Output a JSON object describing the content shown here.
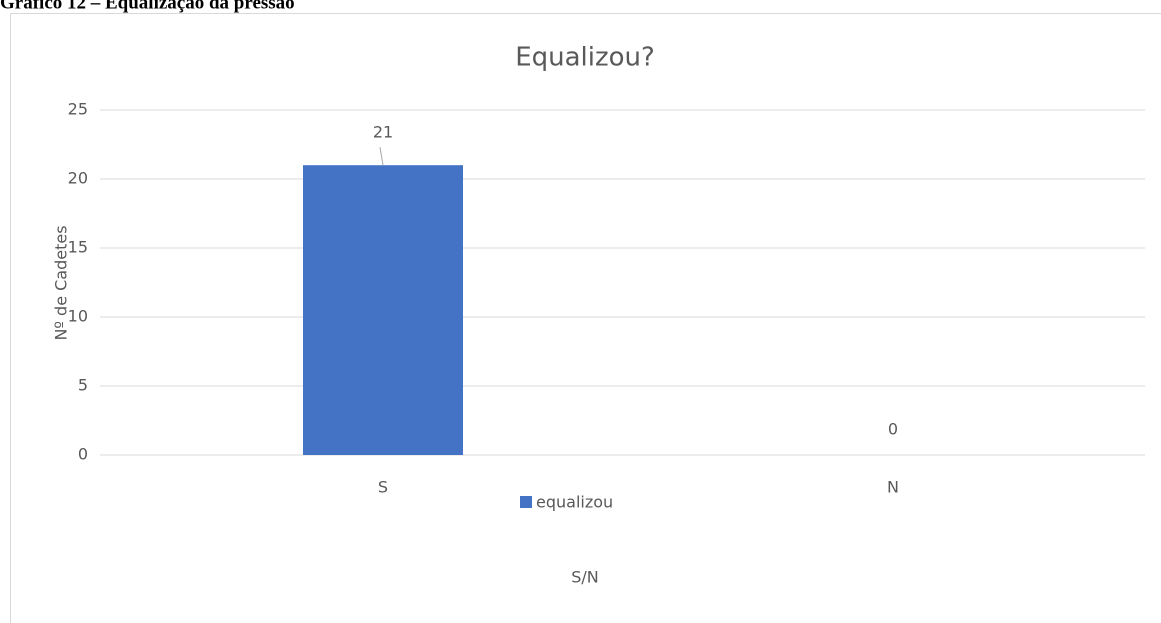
{
  "caption": "Gráfico 12 – Equalização da pressão",
  "chart_data": {
    "type": "bar",
    "title": "Equalizou?",
    "x_label": "S/N",
    "y_label": "Nº de Cadetes",
    "categories": [
      "S",
      "N"
    ],
    "series": [
      {
        "name": "equalizou",
        "color": "#4472c4",
        "values": [
          21,
          0
        ]
      }
    ],
    "ylim": [
      0,
      25
    ],
    "yticks": [
      0,
      5,
      10,
      15,
      20,
      25
    ],
    "grid": true,
    "legend": "bottom"
  }
}
